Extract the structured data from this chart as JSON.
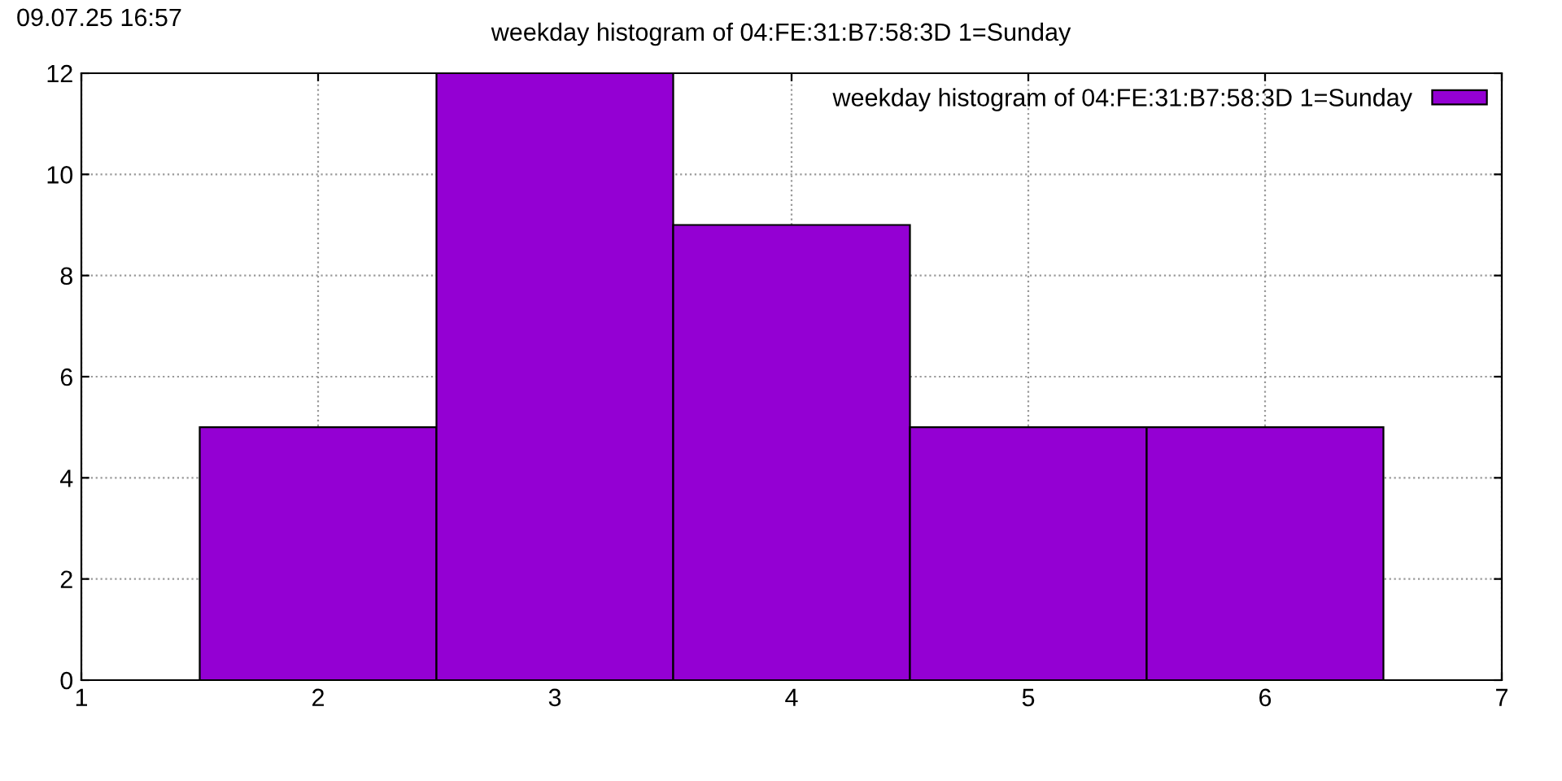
{
  "chart_data": {
    "type": "histogram",
    "title": "weekday histogram of 04:FE:31:B7:58:3D 1=Sunday",
    "annotations": [
      "09.07.25 16:57"
    ],
    "bins": [
      1.5,
      2.5,
      3.5,
      4.5,
      5.5,
      6.5
    ],
    "series": [
      {
        "name": "weekday histogram of 04:FE:31:B7:58:3D 1=Sunday",
        "color": "#9400d3",
        "values": [
          5,
          12,
          9,
          5,
          5
        ]
      }
    ],
    "xlim": [
      1,
      7
    ],
    "xticks": [
      1,
      2,
      3,
      4,
      5,
      6,
      7
    ],
    "ylim": [
      0,
      12
    ],
    "yticks": [
      0,
      2,
      4,
      6,
      8,
      10,
      12
    ],
    "grid": true,
    "line_style": "dotted",
    "legend": "top right"
  }
}
